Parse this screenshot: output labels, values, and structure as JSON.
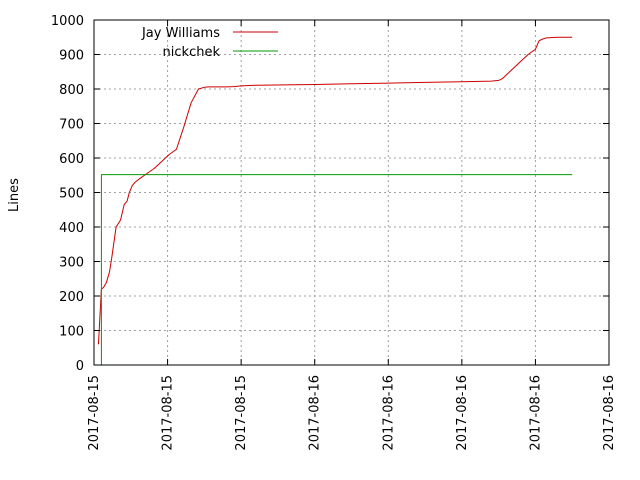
{
  "chart_data": {
    "type": "line",
    "title": "",
    "xlabel": "",
    "ylabel": "Lines",
    "ylim": [
      0,
      1000
    ],
    "xlim": [
      0,
      7
    ],
    "y_ticks": [
      0,
      100,
      200,
      300,
      400,
      500,
      600,
      700,
      800,
      900,
      1000
    ],
    "x_tick_labels": [
      "2017-08-15",
      "2017-08-15",
      "2017-08-15",
      "2017-08-16",
      "2017-08-16",
      "2017-08-16",
      "2017-08-16",
      "2017-08-16"
    ],
    "grid": true,
    "legend_position": "top-left",
    "series": [
      {
        "name": "Jay Williams",
        "color": "#cc0000",
        "x": [
          0.06,
          0.07,
          0.08,
          0.1,
          0.13,
          0.17,
          0.21,
          0.24,
          0.3,
          0.36,
          0.41,
          0.45,
          0.48,
          0.52,
          0.56,
          0.62,
          0.72,
          0.82,
          0.92,
          1.02,
          1.12,
          1.22,
          1.32,
          1.42,
          1.5,
          1.56,
          1.6,
          1.7,
          1.8,
          1.9,
          2.0,
          2.2,
          2.6,
          3.0,
          3.5,
          4.0,
          4.5,
          5.0,
          5.4,
          5.5,
          5.55,
          5.6,
          5.7,
          5.9,
          6.0,
          6.05,
          6.1,
          6.15,
          6.3,
          6.5
        ],
        "y": [
          60,
          100,
          140,
          220,
          225,
          240,
          270,
          310,
          400,
          420,
          465,
          475,
          500,
          520,
          530,
          540,
          555,
          570,
          590,
          610,
          625,
          690,
          760,
          800,
          805,
          806,
          806,
          806,
          806,
          807,
          809,
          811,
          812,
          813,
          815,
          817,
          819,
          821,
          823,
          825,
          830,
          840,
          860,
          900,
          915,
          940,
          945,
          948,
          950,
          950
        ]
      },
      {
        "name": "nickchek",
        "color": "#009900",
        "x": [
          0.1,
          0.1,
          6.5
        ],
        "y": [
          0,
          552,
          552
        ]
      }
    ]
  }
}
